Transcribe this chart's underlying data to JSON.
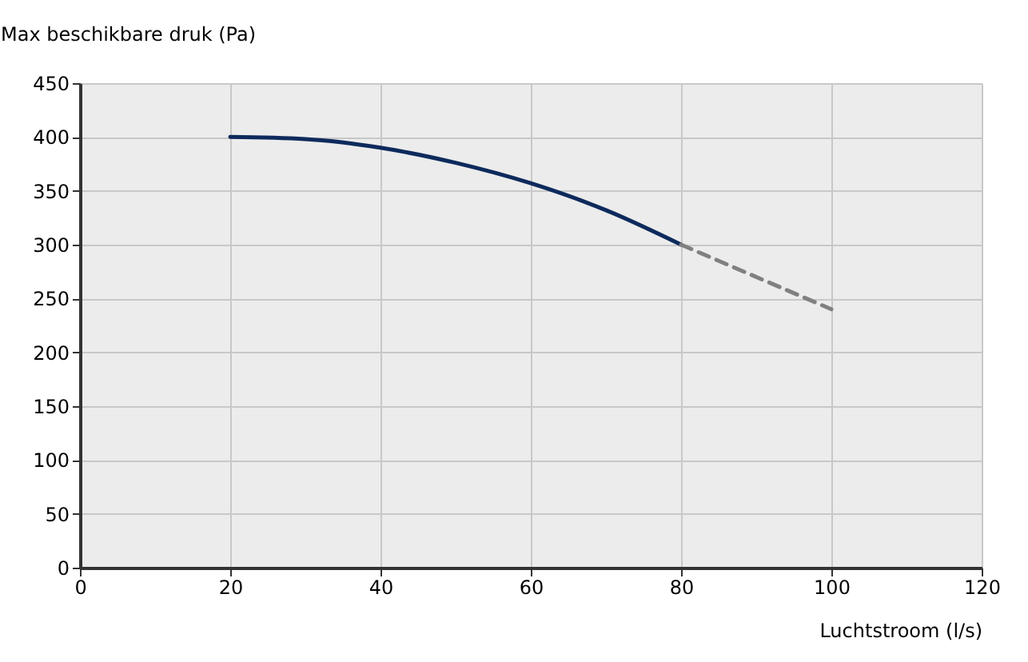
{
  "chart_data": {
    "type": "line",
    "ylabel": "Max beschikbare druk (Pa)",
    "xlabel": "Luchtstroom (l/s)",
    "xlim": [
      0,
      120
    ],
    "xticks": [
      0,
      20,
      40,
      60,
      80,
      100,
      120
    ],
    "ylim": [
      0,
      450
    ],
    "yticks": [
      0,
      50,
      100,
      150,
      200,
      250,
      300,
      350,
      400,
      450
    ],
    "grid": true,
    "series": [
      {
        "color": "#0d2a5c",
        "line_style": "solid",
        "x": [
          20,
          30,
          40,
          50,
          60,
          70,
          80
        ],
        "values": [
          400,
          398,
          390,
          376,
          357,
          332,
          300
        ]
      },
      {
        "color": "#808080",
        "line_style": "dashed",
        "x": [
          80,
          100
        ],
        "values": [
          300,
          240
        ]
      }
    ]
  }
}
